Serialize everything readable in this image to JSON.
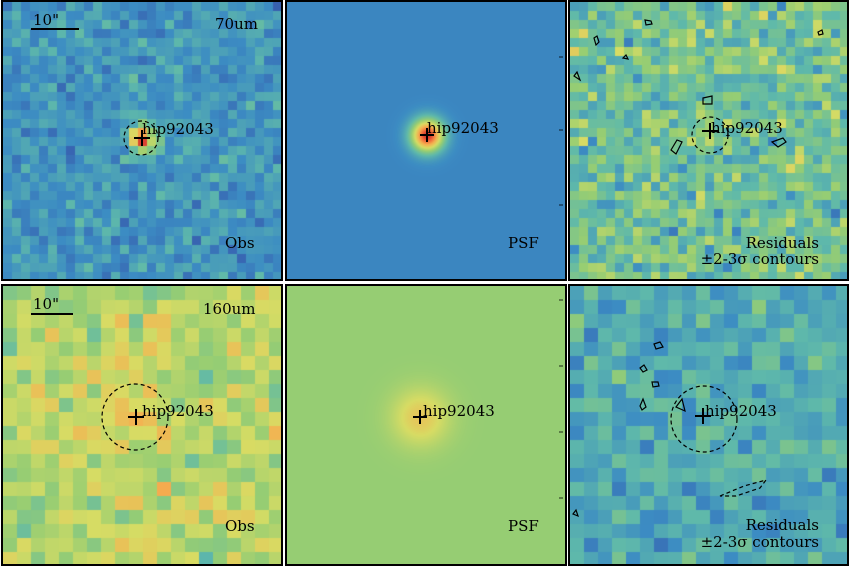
{
  "star_name": "hip92043",
  "scale_bar_label": "10\"",
  "bands": [
    "70um",
    "160um"
  ],
  "panel_labels": {
    "obs": "Obs",
    "psf": "PSF",
    "residuals": "Residuals",
    "contours": "±2-3σ contours"
  },
  "psf_axis_ticks": {
    "top": [
      "30",
      "20",
      "10"
    ],
    "bottom": [
      "20",
      "15",
      "10",
      "5"
    ]
  },
  "colors": {
    "frame": "#000000",
    "psf_background_70um": "#3f86c7",
    "psf_background_160um": "#8cc06a",
    "source_peak": "#e24a33"
  },
  "colormap": "spectral"
}
